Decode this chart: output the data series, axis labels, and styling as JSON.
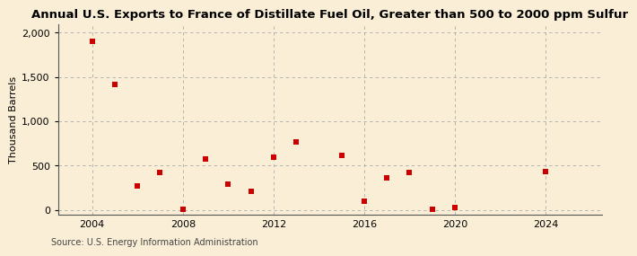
{
  "title": "Annual U.S. Exports to France of Distillate Fuel Oil, Greater than 500 to 2000 ppm Sulfur",
  "ylabel": "Thousand Barrels",
  "source": "Source: U.S. Energy Information Administration",
  "years": [
    2004,
    2005,
    2006,
    2007,
    2008,
    2009,
    2010,
    2011,
    2012,
    2013,
    2015,
    2016,
    2017,
    2018,
    2019,
    2020,
    2024
  ],
  "values": [
    1905,
    1420,
    270,
    420,
    5,
    570,
    290,
    210,
    590,
    770,
    610,
    100,
    360,
    420,
    5,
    30,
    430
  ],
  "marker_color": "#cc0000",
  "marker_size": 25,
  "background_color": "#faefd6",
  "grid_color": "#aaaaaa",
  "xlim": [
    2002.5,
    2026.5
  ],
  "ylim": [
    -60,
    2100
  ],
  "yticks": [
    0,
    500,
    1000,
    1500,
    2000
  ],
  "ytick_labels": [
    "0",
    "500",
    "1,000",
    "1,500",
    "2,000"
  ],
  "xticks": [
    2004,
    2008,
    2012,
    2016,
    2020,
    2024
  ],
  "title_fontsize": 9.5,
  "label_fontsize": 8,
  "tick_fontsize": 8,
  "source_fontsize": 7
}
